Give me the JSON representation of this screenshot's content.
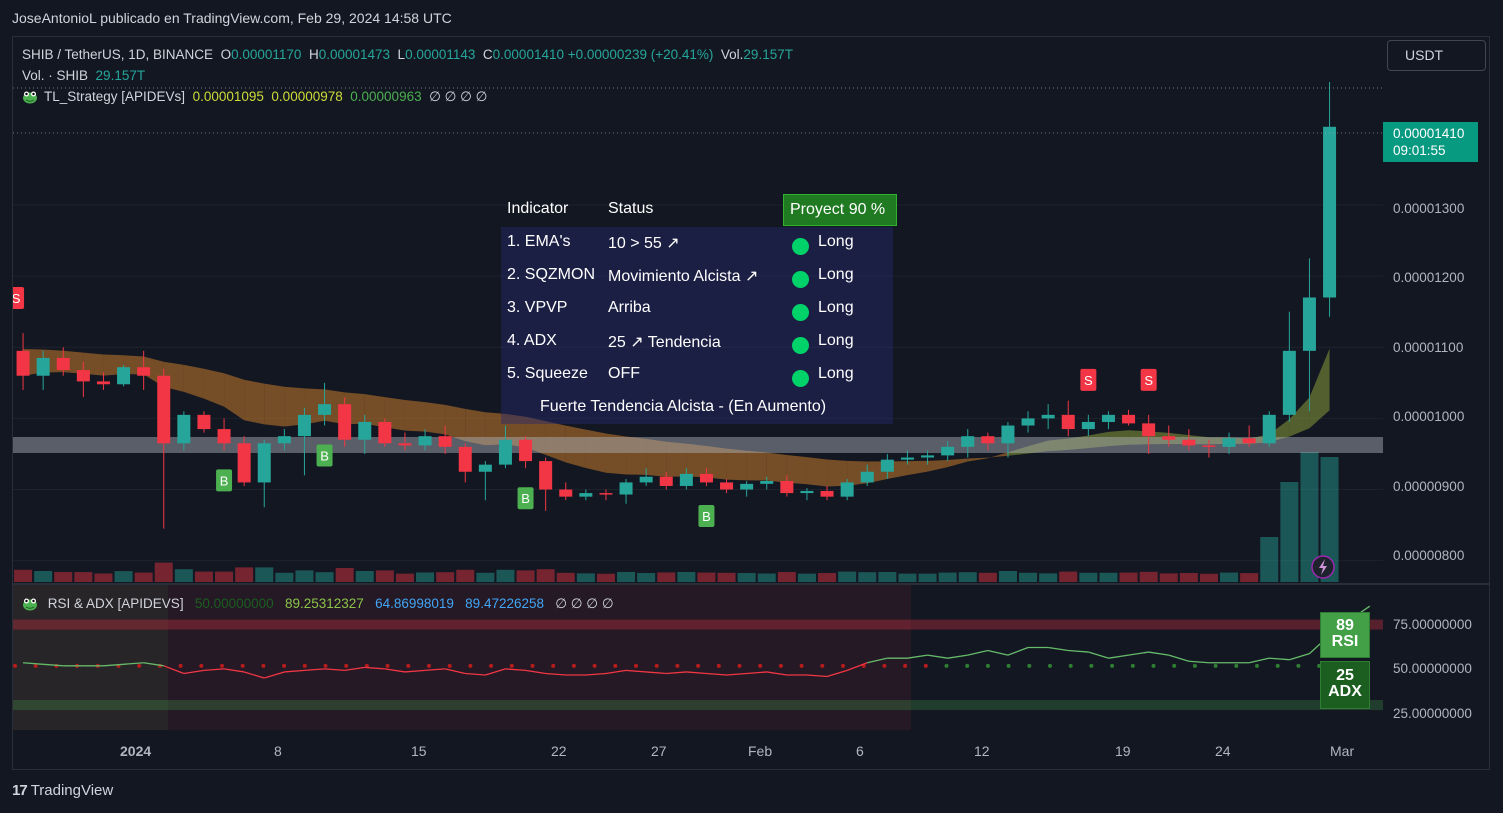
{
  "caption": "JoseAntonioL publicado en TradingView.com, Feb 29, 2024 14:58 UTC",
  "legend": {
    "symbol": "SHIB / TetherUS, 1D, BINANCE",
    "o_label": "O",
    "o": "0.00001170",
    "h_label": "H",
    "h": "0.00001473",
    "l_label": "L",
    "l": "0.00001143",
    "c_label": "C",
    "c": "0.00001410",
    "change": "+0.00000239 (+20.41%)",
    "vol_label": "Vol.",
    "vol": "29.157T",
    "vol_row_label": "Vol. · SHIB",
    "vol_row_value": "29.157T",
    "strategy_name": "TL_Strategy [APIDEVs]",
    "strategy_v1": "0.00001095",
    "strategy_v2": "0.00000978",
    "strategy_v3": "0.00000963",
    "strategy_rest": "∅ ∅ ∅ ∅"
  },
  "currency_button": "USDT",
  "last_price": "0.00001410",
  "countdown": "09:01:55",
  "colors": {
    "up": "#26a69a",
    "down": "#f23645",
    "bg": "#131722",
    "accent_green": "#00d26a"
  },
  "signal_table": {
    "headers": [
      "Indicator",
      "Status",
      "Proyect 90 %"
    ],
    "rows": [
      {
        "indicator": "1. EMA's",
        "status": "10 > 55 ↗",
        "signal": "Long"
      },
      {
        "indicator": "2. SQZMON",
        "status": "Movimiento Alcista ↗",
        "signal": "Long"
      },
      {
        "indicator": "3. VPVP",
        "status": "Arriba",
        "signal": "Long"
      },
      {
        "indicator": "4. ADX",
        "status": "25 ↗ Tendencia",
        "signal": "Long"
      },
      {
        "indicator": "5. Squeeze",
        "status": "OFF",
        "signal": "Long"
      }
    ],
    "footer": "Fuerte Tendencia Alcista - (En Aumento)"
  },
  "markers": {
    "buy": "B",
    "sell": "S"
  },
  "sub_indicator": {
    "name": "RSI & ADX [APIDEVS]",
    "v1": "50.00000000",
    "v2": "89.25312327",
    "v3": "64.86998019",
    "v4": "89.47226258",
    "rest": "∅ ∅ ∅ ∅",
    "rsi_value": "89",
    "rsi_label": "RSI",
    "adx_value": "25",
    "adx_label": "ADX"
  },
  "branding": "TradingView",
  "chart_data": {
    "type": "candlestick",
    "title": "SHIB / TetherUS, 1D, BINANCE",
    "y_axis": {
      "ticks": [
        "0.00001300",
        "0.00001200",
        "0.00001100",
        "0.00001000",
        "0.00000900",
        "0.00000800"
      ],
      "ylim": [
        7.7e-06,
        1.48e-05
      ]
    },
    "x_axis": {
      "ticks": [
        "2024",
        "8",
        "15",
        "22",
        "27",
        "Feb",
        "6",
        "12",
        "19",
        "24",
        "Mar"
      ]
    },
    "candles": [
      {
        "o": 1.095e-05,
        "h": 1.12e-05,
        "l": 1.04e-05,
        "c": 1.06e-05
      },
      {
        "o": 1.06e-05,
        "h": 1.095e-05,
        "l": 1.04e-05,
        "c": 1.085e-05
      },
      {
        "o": 1.085e-05,
        "h": 1.1e-05,
        "l": 1.06e-05,
        "c": 1.068e-05
      },
      {
        "o": 1.068e-05,
        "h": 1.08e-05,
        "l": 1.03e-05,
        "c": 1.052e-05
      },
      {
        "o": 1.052e-05,
        "h": 1.065e-05,
        "l": 1.04e-05,
        "c": 1.048e-05
      },
      {
        "o": 1.048e-05,
        "h": 1.075e-05,
        "l": 1.045e-05,
        "c": 1.072e-05
      },
      {
        "o": 1.072e-05,
        "h": 1.095e-05,
        "l": 1.04e-05,
        "c": 1.06e-05
      },
      {
        "o": 1.06e-05,
        "h": 1.07e-05,
        "l": 8.45e-06,
        "c": 9.65e-06
      },
      {
        "o": 9.65e-06,
        "h": 1.01e-05,
        "l": 9.55e-06,
        "c": 1.005e-05
      },
      {
        "o": 1.005e-05,
        "h": 1.01e-05,
        "l": 9.8e-06,
        "c": 9.85e-06
      },
      {
        "o": 9.85e-06,
        "h": 1e-05,
        "l": 9.55e-06,
        "c": 9.65e-06
      },
      {
        "o": 9.65e-06,
        "h": 9.75e-06,
        "l": 9.05e-06,
        "c": 9.1e-06
      },
      {
        "o": 9.1e-06,
        "h": 9.7e-06,
        "l": 8.75e-06,
        "c": 9.65e-06
      },
      {
        "o": 9.65e-06,
        "h": 9.85e-06,
        "l": 9.55e-06,
        "c": 9.75e-06
      },
      {
        "o": 9.75e-06,
        "h": 1.015e-05,
        "l": 9.2e-06,
        "c": 1.005e-05
      },
      {
        "o": 1.005e-05,
        "h": 1.05e-05,
        "l": 9.9e-06,
        "c": 1.02e-05
      },
      {
        "o": 1.02e-05,
        "h": 1.03e-05,
        "l": 9.6e-06,
        "c": 9.7e-06
      },
      {
        "o": 9.7e-06,
        "h": 1.005e-05,
        "l": 9.5e-06,
        "c": 9.95e-06
      },
      {
        "o": 9.95e-06,
        "h": 1e-05,
        "l": 9.6e-06,
        "c": 9.65e-06
      },
      {
        "o": 9.65e-06,
        "h": 9.8e-06,
        "l": 9.55e-06,
        "c": 9.62e-06
      },
      {
        "o": 9.62e-06,
        "h": 9.85e-06,
        "l": 9.55e-06,
        "c": 9.75e-06
      },
      {
        "o": 9.75e-06,
        "h": 9.9e-06,
        "l": 9.5e-06,
        "c": 9.6e-06
      },
      {
        "o": 9.6e-06,
        "h": 9.65e-06,
        "l": 9.1e-06,
        "c": 9.25e-06
      },
      {
        "o": 9.25e-06,
        "h": 9.4e-06,
        "l": 8.85e-06,
        "c": 9.35e-06
      },
      {
        "o": 9.35e-06,
        "h": 9.9e-06,
        "l": 9.3e-06,
        "c": 9.7e-06
      },
      {
        "o": 9.7e-06,
        "h": 9.75e-06,
        "l": 9.3e-06,
        "c": 9.4e-06
      },
      {
        "o": 9.4e-06,
        "h": 9.45e-06,
        "l": 8.7e-06,
        "c": 9e-06
      },
      {
        "o": 9e-06,
        "h": 9.1e-06,
        "l": 8.85e-06,
        "c": 8.9e-06
      },
      {
        "o": 8.9e-06,
        "h": 9e-06,
        "l": 8.85e-06,
        "c": 8.95e-06
      },
      {
        "o": 8.95e-06,
        "h": 9e-06,
        "l": 8.85e-06,
        "c": 8.93e-06
      },
      {
        "o": 8.93e-06,
        "h": 9.15e-06,
        "l": 8.8e-06,
        "c": 9.1e-06
      },
      {
        "o": 9.1e-06,
        "h": 9.3e-06,
        "l": 9.05e-06,
        "c": 9.18e-06
      },
      {
        "o": 9.18e-06,
        "h": 9.25e-06,
        "l": 9e-06,
        "c": 9.05e-06
      },
      {
        "o": 9.05e-06,
        "h": 9.3e-06,
        "l": 9e-06,
        "c": 9.22e-06
      },
      {
        "o": 9.22e-06,
        "h": 9.3e-06,
        "l": 9.05e-06,
        "c": 9.1e-06
      },
      {
        "o": 9.1e-06,
        "h": 9.15e-06,
        "l": 8.95e-06,
        "c": 9e-06
      },
      {
        "o": 9e-06,
        "h": 9.12e-06,
        "l": 8.9e-06,
        "c": 9.08e-06
      },
      {
        "o": 9.08e-06,
        "h": 9.18e-06,
        "l": 9e-06,
        "c": 9.12e-06
      },
      {
        "o": 9.12e-06,
        "h": 9.2e-06,
        "l": 8.9e-06,
        "c": 8.95e-06
      },
      {
        "o": 8.95e-06,
        "h": 9.02e-06,
        "l": 8.85e-06,
        "c": 8.98e-06
      },
      {
        "o": 8.98e-06,
        "h": 9.05e-06,
        "l": 8.85e-06,
        "c": 8.9e-06
      },
      {
        "o": 8.9e-06,
        "h": 9.15e-06,
        "l": 8.85e-06,
        "c": 9.1e-06
      },
      {
        "o": 9.1e-06,
        "h": 9.35e-06,
        "l": 9.05e-06,
        "c": 9.25e-06
      },
      {
        "o": 9.25e-06,
        "h": 9.5e-06,
        "l": 9.15e-06,
        "c": 9.42e-06
      },
      {
        "o": 9.42e-06,
        "h": 9.55e-06,
        "l": 9.35e-06,
        "c": 9.45e-06
      },
      {
        "o": 9.45e-06,
        "h": 9.55e-06,
        "l": 9.35e-06,
        "c": 9.48e-06
      },
      {
        "o": 9.48e-06,
        "h": 9.68e-06,
        "l": 9.4e-06,
        "c": 9.6e-06
      },
      {
        "o": 9.6e-06,
        "h": 9.85e-06,
        "l": 9.45e-06,
        "c": 9.75e-06
      },
      {
        "o": 9.75e-06,
        "h": 9.8e-06,
        "l": 9.55e-06,
        "c": 9.65e-06
      },
      {
        "o": 9.65e-06,
        "h": 9.95e-06,
        "l": 9.45e-06,
        "c": 9.9e-06
      },
      {
        "o": 9.9e-06,
        "h": 1.01e-05,
        "l": 9.8e-06,
        "c": 1e-05
      },
      {
        "o": 1e-05,
        "h": 1.02e-05,
        "l": 9.85e-06,
        "c": 1.005e-05
      },
      {
        "o": 1.005e-05,
        "h": 1.025e-05,
        "l": 9.75e-06,
        "c": 9.85e-06
      },
      {
        "o": 9.85e-06,
        "h": 1.005e-05,
        "l": 9.75e-06,
        "c": 9.95e-06
      },
      {
        "o": 9.95e-06,
        "h": 1.01e-05,
        "l": 9.85e-06,
        "c": 1.005e-05
      },
      {
        "o": 1.005e-05,
        "h": 1.012e-05,
        "l": 9.9e-06,
        "c": 9.93e-06
      },
      {
        "o": 9.93e-06,
        "h": 1.005e-05,
        "l": 9.5e-06,
        "c": 9.75e-06
      },
      {
        "o": 9.75e-06,
        "h": 9.9e-06,
        "l": 9.6e-06,
        "c": 9.7e-06
      },
      {
        "o": 9.7e-06,
        "h": 9.85e-06,
        "l": 9.55e-06,
        "c": 9.62e-06
      },
      {
        "o": 9.62e-06,
        "h": 9.7e-06,
        "l": 9.45e-06,
        "c": 9.6e-06
      },
      {
        "o": 9.6e-06,
        "h": 9.8e-06,
        "l": 9.5e-06,
        "c": 9.72e-06
      },
      {
        "o": 9.72e-06,
        "h": 9.9e-06,
        "l": 9.6e-06,
        "c": 9.65e-06
      },
      {
        "o": 9.65e-06,
        "h": 1.01e-05,
        "l": 9.6e-06,
        "c": 1.005e-05
      },
      {
        "o": 1.005e-05,
        "h": 1.15e-05,
        "l": 9.95e-06,
        "c": 1.095e-05
      },
      {
        "o": 1.095e-05,
        "h": 1.225e-05,
        "l": 1.01e-05,
        "c": 1.17e-05
      },
      {
        "o": 1.17e-05,
        "h": 1.473e-05,
        "l": 1.143e-05,
        "c": 1.41e-05
      }
    ],
    "signals": [
      {
        "type": "S",
        "index": 0
      },
      {
        "type": "B",
        "index": 10
      },
      {
        "type": "B",
        "index": 15
      },
      {
        "type": "B",
        "index": 25
      },
      {
        "type": "B",
        "index": 34
      },
      {
        "type": "S",
        "index": 53
      },
      {
        "type": "S",
        "index": 56
      }
    ],
    "volume_series_name": "Vol. · SHIB",
    "rsi_series": [
      52,
      51,
      50,
      50,
      50,
      51,
      52,
      50,
      45,
      47,
      48,
      46,
      42,
      46,
      47,
      48,
      47,
      49,
      48,
      46,
      47,
      48,
      45,
      44,
      48,
      47,
      45,
      44,
      44,
      45,
      47,
      46,
      45,
      46,
      45,
      44,
      45,
      46,
      44,
      44,
      43,
      47,
      52,
      55,
      55,
      57,
      55,
      57,
      60,
      57,
      62,
      62,
      60,
      59,
      55,
      57,
      59,
      57,
      53,
      52,
      52,
      52,
      55,
      54,
      58,
      70,
      80,
      89
    ],
    "adx_level": 50,
    "rsi_axis_ticks": [
      "75.00000000",
      "50.00000000",
      "25.00000000"
    ]
  }
}
